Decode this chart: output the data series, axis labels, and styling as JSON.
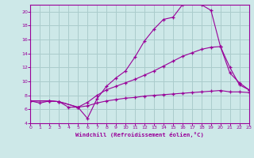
{
  "xlabel": "Windchill (Refroidissement éolien,°C)",
  "bg_color": "#cde8e8",
  "line_color": "#990099",
  "grid_color": "#aacccc",
  "xlim": [
    0,
    23
  ],
  "ylim": [
    4,
    21
  ],
  "yticks": [
    4,
    6,
    8,
    10,
    12,
    14,
    16,
    18,
    20
  ],
  "xticks": [
    0,
    1,
    2,
    3,
    4,
    5,
    6,
    7,
    8,
    9,
    10,
    11,
    12,
    13,
    14,
    15,
    16,
    17,
    18,
    19,
    20,
    21,
    22,
    23
  ],
  "curve1_x": [
    0,
    1,
    2,
    3,
    4,
    5,
    6,
    7,
    8,
    9,
    10,
    11,
    12,
    13,
    14,
    15,
    16,
    17,
    18,
    19,
    20,
    21,
    22,
    23
  ],
  "curve1_y": [
    7.2,
    6.9,
    7.2,
    7.1,
    6.3,
    6.3,
    4.7,
    7.5,
    9.3,
    10.5,
    11.5,
    13.5,
    15.8,
    17.5,
    18.9,
    19.2,
    21.0,
    21.3,
    21.0,
    20.2,
    15.0,
    12.0,
    9.5,
    8.8
  ],
  "curve2_x": [
    0,
    2,
    3,
    5,
    6,
    7,
    8,
    9,
    10,
    11,
    12,
    13,
    14,
    15,
    16,
    17,
    18,
    19,
    20,
    21,
    22,
    23
  ],
  "curve2_y": [
    7.2,
    7.2,
    7.1,
    6.3,
    7.0,
    8.0,
    8.8,
    9.3,
    9.8,
    10.3,
    10.9,
    11.5,
    12.2,
    12.9,
    13.6,
    14.1,
    14.6,
    14.9,
    15.0,
    11.2,
    9.8,
    8.8
  ],
  "curve3_x": [
    0,
    2,
    3,
    5,
    6,
    7,
    8,
    9,
    10,
    11,
    12,
    13,
    14,
    15,
    16,
    17,
    18,
    19,
    20,
    21,
    22,
    23
  ],
  "curve3_y": [
    7.2,
    7.2,
    7.1,
    6.3,
    6.5,
    6.9,
    7.2,
    7.4,
    7.6,
    7.7,
    7.9,
    8.0,
    8.1,
    8.2,
    8.3,
    8.4,
    8.5,
    8.6,
    8.7,
    8.5,
    8.5,
    8.4
  ]
}
